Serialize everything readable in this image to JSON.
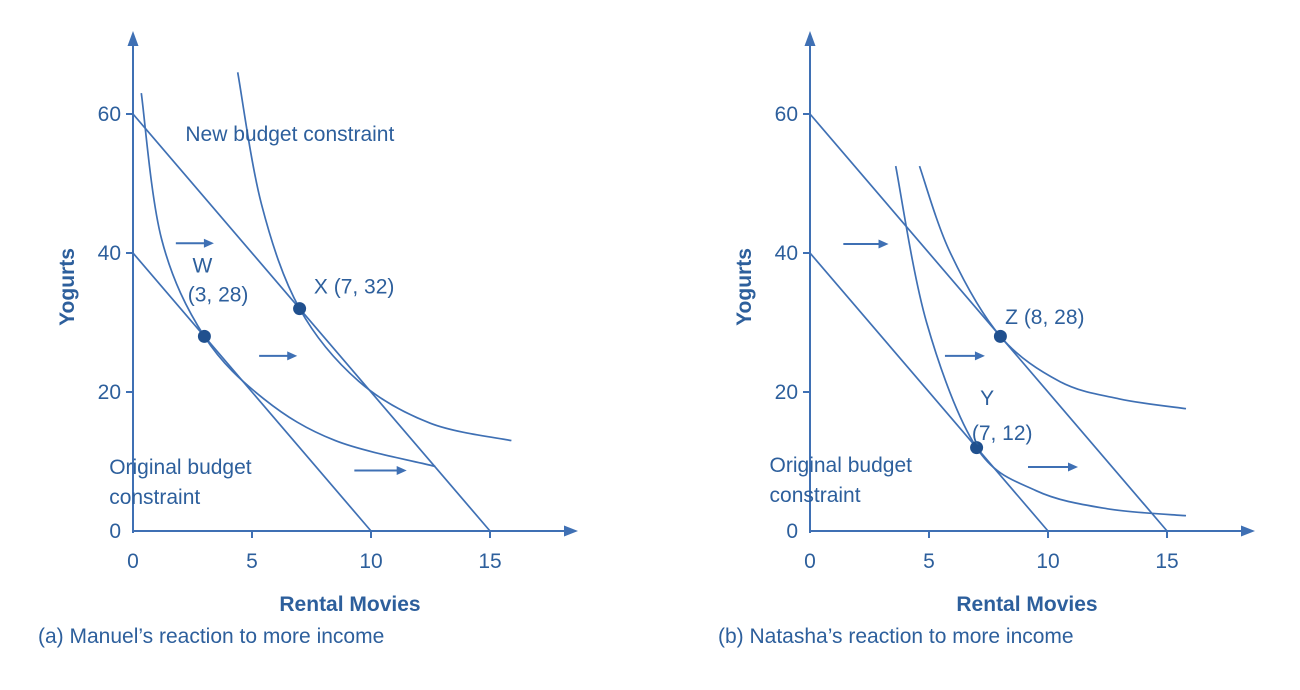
{
  "page": {
    "text_color": "#2d5f9c",
    "line_color": "#3f70b4",
    "point_color": "#20508e",
    "background": "#ffffff"
  },
  "chart_data": [
    {
      "type": "line",
      "panel": "a",
      "caption": "(a) Manuel’s reaction to more income",
      "xlabel": "Rental Movies",
      "ylabel": "Yogurts",
      "xlim": [
        0,
        18.6
      ],
      "ylim": [
        0,
        71
      ],
      "x_ticks": [
        0,
        5,
        10,
        15
      ],
      "y_ticks": [
        0,
        20,
        40,
        60
      ],
      "grid": false,
      "legend": "none",
      "budget_lines": [
        {
          "name": "original-budget-constraint-line",
          "points": [
            [
              0,
              40
            ],
            [
              10,
              0
            ]
          ]
        },
        {
          "name": "new-budget-constraint-line",
          "points": [
            [
              0,
              60
            ],
            [
              15,
              0
            ]
          ]
        }
      ],
      "indifference_curves": [
        {
          "name": "indifference-curve-through-W",
          "points": [
            [
              0.35,
              63
            ],
            [
              1.2,
              42
            ],
            [
              3,
              28
            ],
            [
              5.5,
              19
            ],
            [
              8.5,
              13
            ],
            [
              12.7,
              9.3
            ]
          ]
        },
        {
          "name": "indifference-curve-through-X",
          "points": [
            [
              4.4,
              66
            ],
            [
              5.4,
              47
            ],
            [
              7,
              32
            ],
            [
              9.5,
              21.5
            ],
            [
              12.5,
              15.5
            ],
            [
              15.9,
              13
            ]
          ]
        }
      ],
      "points": [
        {
          "label": "W",
          "coords_text": "(3, 28)",
          "x": 3,
          "y": 28,
          "label_x": 2.5,
          "label_y": 37.2,
          "coords_x": 2.3,
          "coords_y": 33
        },
        {
          "label": "X (7, 32)",
          "coords_text": "",
          "x": 7,
          "y": 32,
          "label_x": 7.6,
          "label_y": 34.2
        }
      ],
      "arrows": [
        {
          "x1": 1.8,
          "y1": 41.4,
          "x2": 3.4,
          "y2": 41.4
        },
        {
          "x1": 5.3,
          "y1": 25.2,
          "x2": 6.9,
          "y2": 25.2
        },
        {
          "x1": 9.3,
          "y1": 8.7,
          "x2": 11.5,
          "y2": 8.7
        }
      ],
      "annotations": [
        {
          "lines": [
            "New budget constraint"
          ],
          "x": 2.2,
          "y": 56.1
        },
        {
          "lines": [
            "Original budget",
            "constraint"
          ],
          "x": -1.0,
          "y": 8.2
        }
      ]
    },
    {
      "type": "line",
      "panel": "b",
      "caption": "(b) Natasha’s reaction to more income",
      "xlabel": "Rental Movies",
      "ylabel": "Yogurts",
      "xlim": [
        0,
        18.6
      ],
      "ylim": [
        0,
        71
      ],
      "x_ticks": [
        0,
        5,
        10,
        15
      ],
      "y_ticks": [
        0,
        20,
        40,
        60
      ],
      "grid": false,
      "legend": "none",
      "budget_lines": [
        {
          "name": "original-budget-constraint-line",
          "points": [
            [
              0,
              40
            ],
            [
              10,
              0
            ]
          ]
        },
        {
          "name": "new-budget-constraint-line",
          "points": [
            [
              0,
              60
            ],
            [
              15,
              0
            ]
          ]
        }
      ],
      "indifference_curves": [
        {
          "name": "indifference-curve-through-Z",
          "points": [
            [
              4.6,
              52.5
            ],
            [
              5.9,
              40
            ],
            [
              8,
              28
            ],
            [
              10.5,
              21.5
            ],
            [
              13,
              19
            ],
            [
              15.8,
              17.6
            ]
          ]
        },
        {
          "name": "indifference-curve-through-Y",
          "points": [
            [
              3.6,
              52.5
            ],
            [
              4.9,
              30
            ],
            [
              7,
              12
            ],
            [
              9.5,
              5.8
            ],
            [
              12.5,
              3.2
            ],
            [
              15.8,
              2.2
            ]
          ]
        }
      ],
      "points": [
        {
          "label": "Z (8, 28)",
          "coords_text": "",
          "x": 8,
          "y": 28,
          "label_x": 8.2,
          "label_y": 29.8
        },
        {
          "label": "Y",
          "coords_text": "(7, 12)",
          "x": 7,
          "y": 12,
          "label_x": 7.15,
          "label_y": 18.1,
          "coords_x": 6.8,
          "coords_y": 13.1
        }
      ],
      "arrows": [
        {
          "x1": 1.4,
          "y1": 41.3,
          "x2": 3.3,
          "y2": 41.3
        },
        {
          "x1": 5.67,
          "y1": 25.2,
          "x2": 7.35,
          "y2": 25.2
        },
        {
          "x1": 9.16,
          "y1": 9.2,
          "x2": 11.26,
          "y2": 9.2
        }
      ],
      "annotations": [
        {
          "lines": [
            "Original budget",
            "constraint"
          ],
          "x": -1.7,
          "y": 8.5
        }
      ]
    }
  ]
}
